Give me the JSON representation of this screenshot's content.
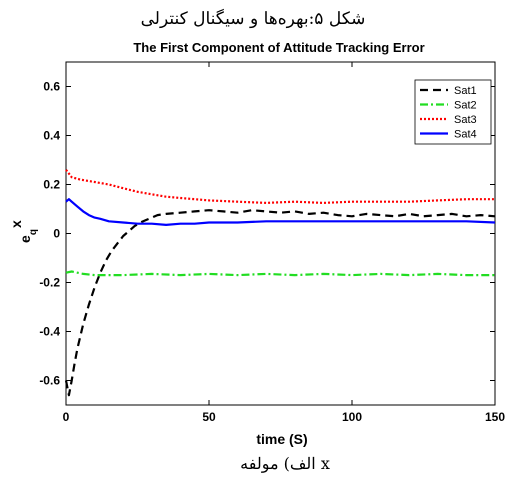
{
  "figure_caption": "شکل ۵:بهره‌ها و سیگنال کنترلی",
  "sub_caption": "الف) مولفه x",
  "chart_data": {
    "type": "line",
    "title": "The First Component of Attitude Tracking Error",
    "xlabel": "time (S)",
    "ylabel_base": "e",
    "ylabel_sup": "x",
    "ylabel_sub": "q",
    "xlim": [
      0,
      150
    ],
    "ylim": [
      -0.7,
      0.7
    ],
    "xticks": [
      0,
      50,
      100,
      150
    ],
    "yticks": [
      -0.6,
      -0.4,
      -0.2,
      0,
      0.2,
      0.4,
      0.6
    ],
    "grid": false,
    "legend_position": "top-right",
    "series": [
      {
        "name": "Sat1",
        "color": "#000000",
        "style": "dashed",
        "x": [
          0,
          1,
          2,
          3,
          4,
          6,
          8,
          10,
          12,
          14,
          16,
          18,
          20,
          22,
          24,
          26,
          28,
          30,
          32,
          35,
          40,
          45,
          50,
          55,
          60,
          65,
          70,
          75,
          80,
          85,
          90,
          95,
          100,
          105,
          110,
          115,
          120,
          125,
          130,
          135,
          140,
          145,
          150
        ],
        "y": [
          -0.6,
          -0.66,
          -0.6,
          -0.53,
          -0.47,
          -0.37,
          -0.29,
          -0.22,
          -0.16,
          -0.11,
          -0.07,
          -0.04,
          -0.01,
          0.01,
          0.03,
          0.045,
          0.055,
          0.065,
          0.075,
          0.08,
          0.085,
          0.09,
          0.095,
          0.09,
          0.085,
          0.095,
          0.09,
          0.085,
          0.09,
          0.08,
          0.085,
          0.075,
          0.07,
          0.08,
          0.075,
          0.07,
          0.08,
          0.07,
          0.075,
          0.08,
          0.07,
          0.075,
          0.07
        ]
      },
      {
        "name": "Sat2",
        "color": "#22dd22",
        "style": "dash-dot",
        "x": [
          0,
          2,
          4,
          6,
          10,
          20,
          30,
          40,
          50,
          60,
          70,
          80,
          90,
          100,
          110,
          120,
          130,
          140,
          150
        ],
        "y": [
          -0.16,
          -0.155,
          -0.16,
          -0.165,
          -0.17,
          -0.17,
          -0.165,
          -0.17,
          -0.165,
          -0.17,
          -0.165,
          -0.17,
          -0.165,
          -0.17,
          -0.165,
          -0.17,
          -0.165,
          -0.17,
          -0.17
        ]
      },
      {
        "name": "Sat3",
        "color": "#ff0000",
        "style": "dotted",
        "x": [
          0,
          2,
          5,
          10,
          15,
          20,
          25,
          30,
          35,
          40,
          45,
          50,
          60,
          70,
          80,
          90,
          100,
          110,
          120,
          130,
          140,
          150
        ],
        "y": [
          0.26,
          0.23,
          0.22,
          0.21,
          0.2,
          0.185,
          0.17,
          0.16,
          0.15,
          0.145,
          0.14,
          0.135,
          0.13,
          0.125,
          0.13,
          0.125,
          0.13,
          0.13,
          0.13,
          0.135,
          0.14,
          0.14
        ]
      },
      {
        "name": "Sat4",
        "color": "#0000ff",
        "style": "solid",
        "x": [
          0,
          1,
          2,
          4,
          6,
          8,
          10,
          12,
          15,
          20,
          25,
          30,
          35,
          40,
          45,
          50,
          60,
          70,
          80,
          90,
          100,
          110,
          120,
          130,
          140,
          150
        ],
        "y": [
          0.13,
          0.14,
          0.13,
          0.11,
          0.09,
          0.075,
          0.065,
          0.06,
          0.05,
          0.045,
          0.04,
          0.04,
          0.035,
          0.04,
          0.04,
          0.045,
          0.045,
          0.05,
          0.05,
          0.05,
          0.05,
          0.05,
          0.05,
          0.05,
          0.05,
          0.045
        ]
      }
    ]
  }
}
